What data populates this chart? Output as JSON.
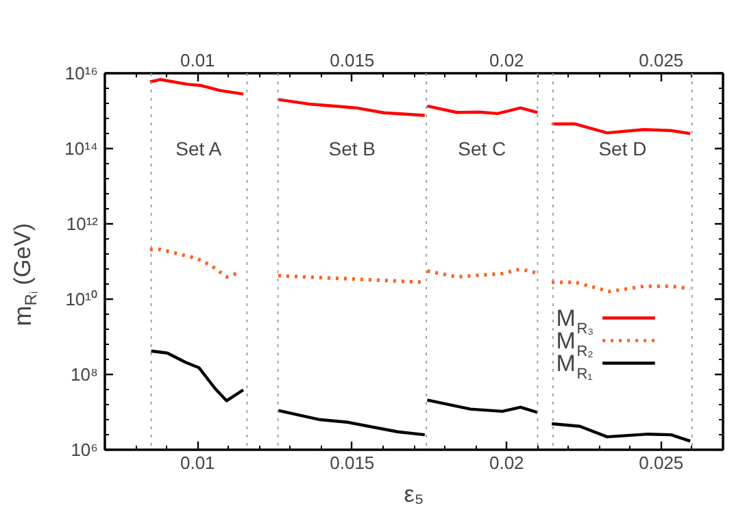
{
  "chart_data": {
    "type": "line",
    "xlabel": "ε₅",
    "ylabel": "m$_{Rᵢ}$  (GeV)",
    "log": "y",
    "xlim": [
      0.007,
      0.027
    ],
    "xticks": [
      0.01,
      0.015,
      0.02,
      0.025
    ],
    "x2lim": [
      0.007,
      0.027
    ],
    "x2ticks": [
      0.01,
      0.015,
      0.02,
      0.025
    ],
    "ylim": [
      1000000.0,
      1e+16
    ],
    "yticks": [
      {
        "value": 1000000.0,
        "label": "10⁶"
      },
      {
        "value": 100000000.0,
        "label": "10⁸"
      },
      {
        "value": 10000000000.0,
        "label": "10¹⁰"
      },
      {
        "value": 1000000000000.0,
        "label": "10¹²"
      },
      {
        "value": 100000000000000.0,
        "label": "10¹⁴"
      },
      {
        "value": 1e+16,
        "label": "10¹⁶"
      }
    ],
    "legend": "bottom right",
    "grid": false,
    "ref_lines": [
      {
        "axis": "x",
        "value": 0.0085,
        "color": "#a0a0a0",
        "line_style": "dotted"
      },
      {
        "axis": "x",
        "value": 0.0116,
        "color": "#a0a0a0",
        "line_style": "dotted"
      },
      {
        "axis": "x",
        "value": 0.0126,
        "color": "#a0a0a0",
        "line_style": "dotted"
      },
      {
        "axis": "x",
        "value": 0.0174,
        "color": "#a0a0a0",
        "line_style": "dotted"
      },
      {
        "axis": "x",
        "value": 0.021,
        "color": "#a0a0a0",
        "line_style": "dotted"
      },
      {
        "axis": "x",
        "value": 0.0215,
        "color": "#a0a0a0",
        "line_style": "dotted"
      },
      {
        "axis": "x",
        "value": 0.026,
        "color": "#a0a0a0",
        "line_style": "dotted"
      }
    ],
    "annotations": [
      "Set A",
      "Set B",
      "Set C",
      "Set D"
    ],
    "series": [
      {
        "name": "M$_{R₃}$",
        "color": "#ff0000",
        "line_style": "solid",
        "x": [
          0.00846,
          0.0088,
          0.00968,
          0.01013,
          0.01072,
          0.01148,
          0.0121,
          0.01261,
          0.01367,
          0.01514,
          0.01603,
          0.01735,
          0.0174,
          0.01743,
          0.01839,
          0.01912,
          0.01971,
          0.02045,
          0.021,
          0.0212,
          0.02146,
          0.02222,
          0.02325,
          0.02443,
          0.02532,
          0.02594
        ],
        "values": [
          5900000000000000.0,
          6800000000000000.0,
          5100000000000000.0,
          4700000000000000.0,
          3500000000000000.0,
          2800000000000000.0,
          null,
          2000000000000000.0,
          1500000000000000.0,
          1200000000000000.0,
          890000000000000.0,
          760000000000000.0,
          null,
          1350000000000000.0,
          910000000000000.0,
          930000000000000.0,
          850000000000000.0,
          1200000000000000.0,
          910000000000000.0,
          null,
          450000000000000.0,
          450000000000000.0,
          260000000000000.0,
          320000000000000.0,
          300000000000000.0,
          250000000000000.0
        ]
      },
      {
        "name": "M$_{R₂}$",
        "color": "#ff6020",
        "line_style": "dotted",
        "x": [
          0.00846,
          0.0088,
          0.00998,
          0.01042,
          0.01094,
          0.01138,
          0.0121,
          0.01261,
          0.01514,
          0.01735,
          0.0174,
          0.01743,
          0.01839,
          0.01986,
          0.02045,
          0.021,
          0.0212,
          0.02146,
          0.02222,
          0.02333,
          0.02443,
          0.02532,
          0.02594
        ],
        "values": [
          210000000000.0,
          210000000000.0,
          120000000000.0,
          80000000000.0,
          39000000000.0,
          52000000000.0,
          null,
          42000000000.0,
          34000000000.0,
          28000000000.0,
          null,
          56000000000.0,
          39000000000.0,
          48000000000.0,
          63000000000.0,
          49000000000.0,
          null,
          28000000000.0,
          28000000000.0,
          16000000000.0,
          22000000000.0,
          22000000000.0,
          19000000000.0
        ]
      },
      {
        "name": "M$_{R₁}$",
        "color": "#000000",
        "line_style": "solid",
        "x": [
          0.0085,
          0.00902,
          0.00961,
          0.01005,
          0.01057,
          0.01094,
          0.01148,
          0.0121,
          0.01261,
          0.01396,
          0.01485,
          0.01647,
          0.01735,
          0.0174,
          0.01743,
          0.01883,
          0.01986,
          0.02045,
          0.021,
          0.0212,
          0.02146,
          0.02237,
          0.02325,
          0.02458,
          0.02532,
          0.02594
        ],
        "values": [
          420000000.0,
          370000000.0,
          210000000.0,
          150000000.0,
          42000000.0,
          20000000.0,
          39000000.0,
          null,
          11000000.0,
          6300000.0,
          5400000.0,
          3000000.0,
          2500000.0,
          null,
          21000000.0,
          12000000.0,
          10500000.0,
          13500000.0,
          9800000.0,
          null,
          4900000.0,
          4200000.0,
          2200000.0,
          2600000.0,
          2500000.0,
          1700000.0
        ]
      }
    ]
  }
}
